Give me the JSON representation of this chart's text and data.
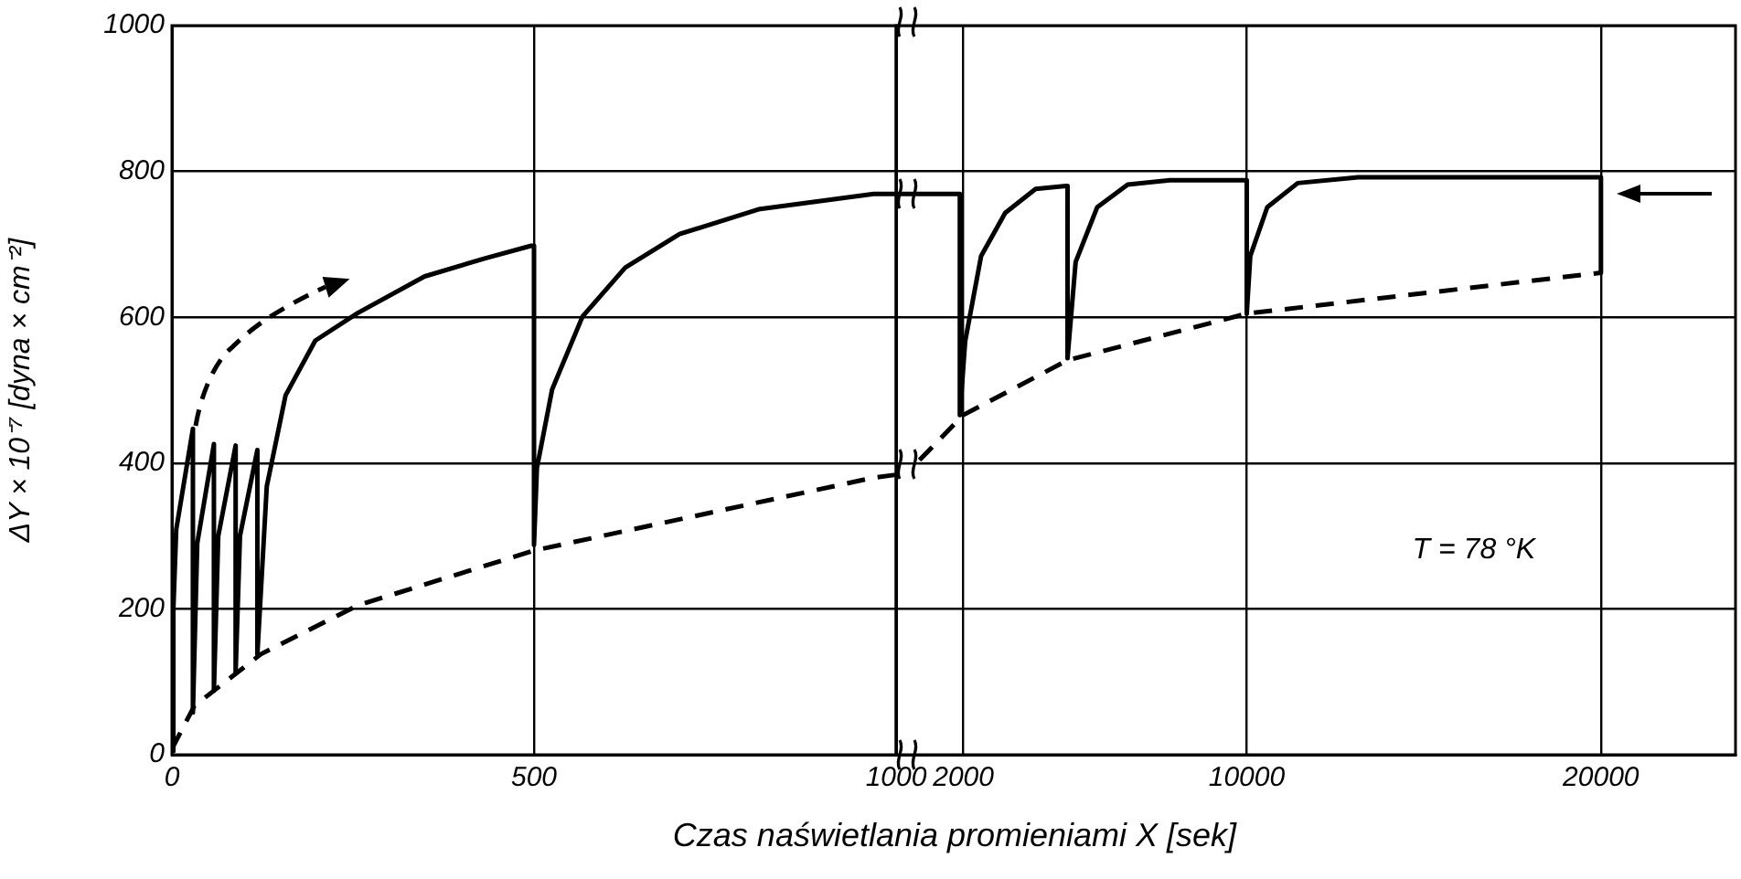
{
  "chart_data": [
    {
      "type": "line",
      "xlabel": "Czas naświetlania promieniami X [sek]",
      "ylabel": "ΔY × 10⁻⁷ [dyna × cm⁻²]",
      "xlim": [
        0,
        1000
      ],
      "ylim": [
        0,
        1000
      ],
      "xticks": [
        0,
        500,
        1000
      ],
      "yticks": [
        0,
        200,
        400,
        600,
        800,
        1000
      ],
      "grid": true,
      "marker": "none",
      "series": [
        {
          "color": "#000000",
          "line_style": "solid",
          "x": [
            0,
            2,
            6,
            29,
            29,
            35,
            58,
            58,
            64,
            88,
            88,
            94,
            118,
            118,
            131,
            157,
            198,
            257,
            349,
            433,
            496,
            500,
            500,
            504,
            525,
            567,
            626,
            701,
            810,
            969,
            1000
          ],
          "values": [
            5,
            200,
            309,
            447,
            58,
            290,
            426,
            88,
            300,
            424,
            113,
            300,
            418,
            138,
            368,
            493,
            568,
            606,
            656,
            681,
            698,
            698,
            288,
            393,
            501,
            601,
            668,
            714,
            748,
            769,
            769
          ]
        },
        {
          "color": "#000000",
          "line_style": "dashed",
          "x": [
            0,
            31,
            123,
            257,
            500,
            969,
            1000
          ],
          "values": [
            8,
            67,
            138,
            205,
            280,
            380,
            384
          ]
        }
      ]
    },
    {
      "type": "line",
      "xlim": [
        100,
        23800
      ],
      "ylim": [
        0,
        1000
      ],
      "xticks": [
        2000,
        10000,
        20000
      ],
      "yticks": [
        0,
        200,
        400,
        600,
        800,
        1000
      ],
      "grid": true,
      "marker": "none",
      "tick_labels": "x",
      "annotations": [
        "T = 78 °K"
      ],
      "series": [
        {
          "color": "#000000",
          "line_style": "solid",
          "x": [
            100,
            1900,
            1900,
            2050,
            2500,
            3180,
            4040,
            4900,
            4940,
            4940,
            5170,
            5780,
            6640,
            7830,
            10000,
            10000,
            10100,
            10580,
            11440,
            13150,
            20000,
            20000
          ],
          "values": [
            769,
            769,
            466,
            567,
            684,
            743,
            776,
            780,
            780,
            544,
            676,
            751,
            782,
            788,
            788,
            605,
            684,
            751,
            784,
            792,
            792,
            661
          ]
        },
        {
          "color": "#000000",
          "line_style": "dashed",
          "x": [
            760,
            2000,
            4940,
            10000,
            20000
          ],
          "values": [
            404,
            466,
            541,
            605,
            661
          ]
        }
      ]
    }
  ]
}
